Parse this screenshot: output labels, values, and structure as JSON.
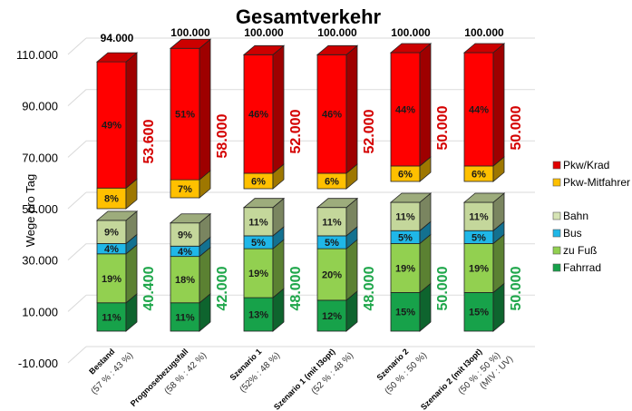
{
  "chart_data": {
    "type": "bar",
    "subtype": "stacked-3d-split",
    "title": "Gesamtverkehr",
    "ylabel": "Wege pro Tag",
    "xlabel": "",
    "y_ticks": [
      "110.000",
      "90.000",
      "70.000",
      "50.000",
      "30.000",
      "10.000",
      "-10.000"
    ],
    "ylim": [
      -10000,
      110000
    ],
    "grid": true,
    "legend_position": "right",
    "categories": [
      {
        "name": "Bestand",
        "sub": [
          "(57 % : 43 %)"
        ]
      },
      {
        "name": "Prognosebezugsfall",
        "sub": [
          "(58 % : 42 %)"
        ]
      },
      {
        "name": "Szenario 1",
        "sub": [
          "(52% : 48 %)"
        ]
      },
      {
        "name": "Szenario 1 (mit I3opt)",
        "sub": [
          "(52 % : 48 %)"
        ]
      },
      {
        "name": "Szenario 2",
        "sub": [
          "(50 % : 50 %)"
        ]
      },
      {
        "name": "Szenario 2 (mit I3opt)",
        "sub": [
          "(50 % : 50 %)",
          "(MIV : UV)"
        ]
      }
    ],
    "totals": [
      "94.000",
      "100.000",
      "100.000",
      "100.000",
      "100.000",
      "100.000"
    ],
    "group_totals": {
      "miv": {
        "label": "MIV",
        "values": [
          "53.600",
          "58.000",
          "52.000",
          "52.000",
          "50.000",
          "50.000"
        ],
        "color": "#d40000"
      },
      "uv": {
        "label": "UV",
        "values": [
          "40.400",
          "42.000",
          "48.000",
          "48.000",
          "50.000",
          "50.000"
        ],
        "color": "#1ea64a"
      }
    },
    "series": [
      {
        "name": "Pkw/Krad",
        "group": "miv",
        "color": "#ff0000",
        "values_pct": [
          49,
          51,
          46,
          46,
          44,
          44
        ]
      },
      {
        "name": "Pkw-Mitfahrer",
        "group": "miv",
        "color": "#ffc000",
        "values_pct": [
          8,
          7,
          6,
          6,
          6,
          6
        ]
      },
      {
        "name": "Bahn",
        "group": "uv",
        "color": "#c4d79b",
        "values_pct": [
          9,
          9,
          11,
          11,
          11,
          11
        ]
      },
      {
        "name": "Bus",
        "group": "uv",
        "color": "#1fb7e8",
        "values_pct": [
          4,
          4,
          5,
          5,
          5,
          5
        ]
      },
      {
        "name": "zu Fuß",
        "group": "uv",
        "color": "#92d050",
        "values_pct": [
          19,
          18,
          19,
          20,
          19,
          19
        ]
      },
      {
        "name": "Fahrrad",
        "group": "uv",
        "color": "#17a24a",
        "values_pct": [
          11,
          11,
          13,
          12,
          15,
          15
        ]
      }
    ]
  },
  "legend": {
    "groups": [
      [
        {
          "label": "Pkw/Krad",
          "color": "#e00000"
        },
        {
          "label": "Pkw-Mitfahrer",
          "color": "#ffc000"
        }
      ],
      [
        {
          "label": "Bahn",
          "color": "#d6e4b5"
        },
        {
          "label": "Bus",
          "color": "#1fb7e8"
        },
        {
          "label": "zu Fuß",
          "color": "#92d050"
        },
        {
          "label": "Fahrrad",
          "color": "#17a24a"
        }
      ]
    ]
  }
}
